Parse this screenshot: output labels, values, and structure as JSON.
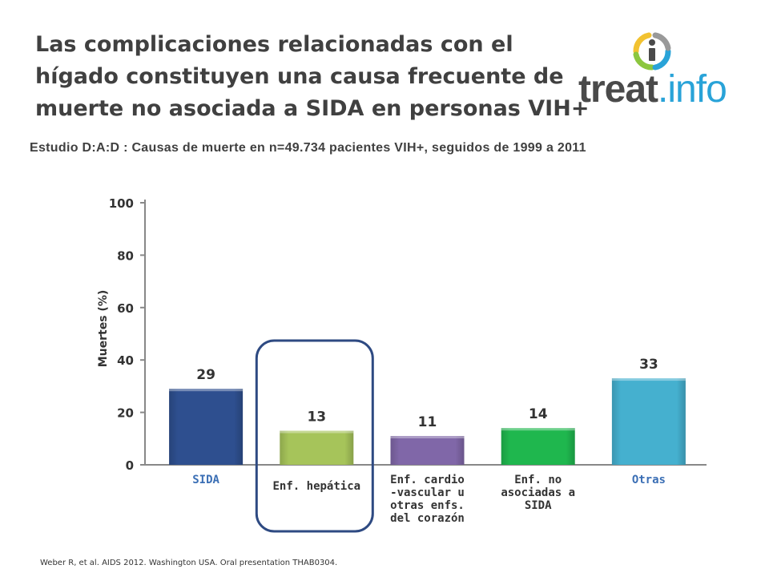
{
  "title_lines": [
    "Las complicaciones relacionadas con el",
    "hígado constituyen una causa frecuente de",
    "muerte no asociada a SIDA en personas VIH+"
  ],
  "subtitle": "Estudio D:A:D : Causas de muerte en n=49.734 pacientes VIH+, seguidos de 1999 a 2011",
  "logo": {
    "main": "treat",
    "suffix": ".info"
  },
  "source": "Weber R, et al. AIDS 2012. Washington USA. Oral presentation THAB0304.",
  "colors": {
    "logo_ring": [
      "#f2c230",
      "#8cc63f",
      "#29a3d8",
      "#999999"
    ],
    "highlight": "#2e4a82"
  },
  "chart_data": {
    "type": "bar",
    "ylabel": "Muertes (%)",
    "ylim": [
      0,
      100
    ],
    "yticks": [
      0,
      20,
      40,
      60,
      80,
      100
    ],
    "categories": [
      [
        "SIDA"
      ],
      [
        "Enf. hepática"
      ],
      [
        "Enf. cardio",
        "-vascular u",
        "otras enfs.",
        "del corazón"
      ],
      [
        "Enf. no",
        "asociadas a",
        "SIDA"
      ],
      [
        "Otras"
      ]
    ],
    "values": [
      29,
      13,
      11,
      14,
      33
    ],
    "data_labels": [
      "29",
      "13",
      "11",
      "14",
      "33"
    ],
    "colors": [
      "#2e4f8f",
      "#a6c45a",
      "#8067a8",
      "#1fb74e",
      "#45b0cf"
    ],
    "highlight_index": 1,
    "grid": false
  }
}
